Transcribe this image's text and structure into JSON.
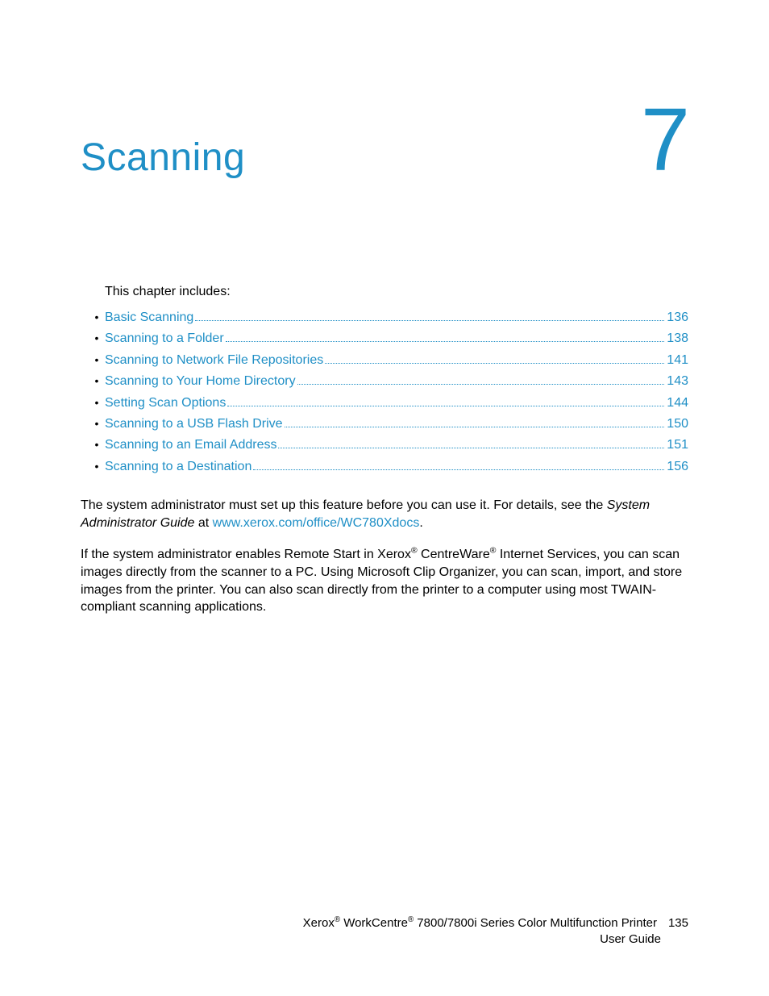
{
  "colors": {
    "link": "#1f8fc6",
    "heading": "#1f8fc6",
    "body": "#000000",
    "dots": "#1f8fc6"
  },
  "chapter": {
    "title": "Scanning",
    "number": "7"
  },
  "intro": "This chapter includes:",
  "toc": [
    {
      "label": "Basic Scanning",
      "page": "136"
    },
    {
      "label": "Scanning to a Folder",
      "page": "138"
    },
    {
      "label": "Scanning to Network File Repositories",
      "page": "141"
    },
    {
      "label": "Scanning to Your Home Directory",
      "page": "143"
    },
    {
      "label": "Setting Scan Options",
      "page": "144"
    },
    {
      "label": "Scanning to a USB Flash Drive",
      "page": "150"
    },
    {
      "label": "Scanning to an Email Address",
      "page": "151"
    },
    {
      "label": "Scanning to a Destination",
      "page": "156"
    }
  ],
  "para1": {
    "pre": "The system administrator must set up this feature before you can use it. For details, see the ",
    "italic": "System Administrator Guide",
    "mid": " at ",
    "link": "www.xerox.com/office/WC780Xdocs",
    "post": "."
  },
  "para2": {
    "t0": "If the system administrator enables Remote Start in Xerox",
    "reg1": "®",
    "t1": " CentreWare",
    "reg2": "®",
    "t2": " Internet Services, you can scan images directly from the scanner to a PC. Using Microsoft Clip Organizer, you can scan, import, and store images from the printer. You can also scan directly from the printer to a computer using most TWAIN-compliant scanning applications."
  },
  "footer": {
    "brand1": "Xerox",
    "reg1": "®",
    "mid1": " WorkCentre",
    "reg2": "®",
    "mid2": " 7800/7800i Series Color Multifunction Printer",
    "pagenum": "135",
    "line2": "User Guide"
  }
}
